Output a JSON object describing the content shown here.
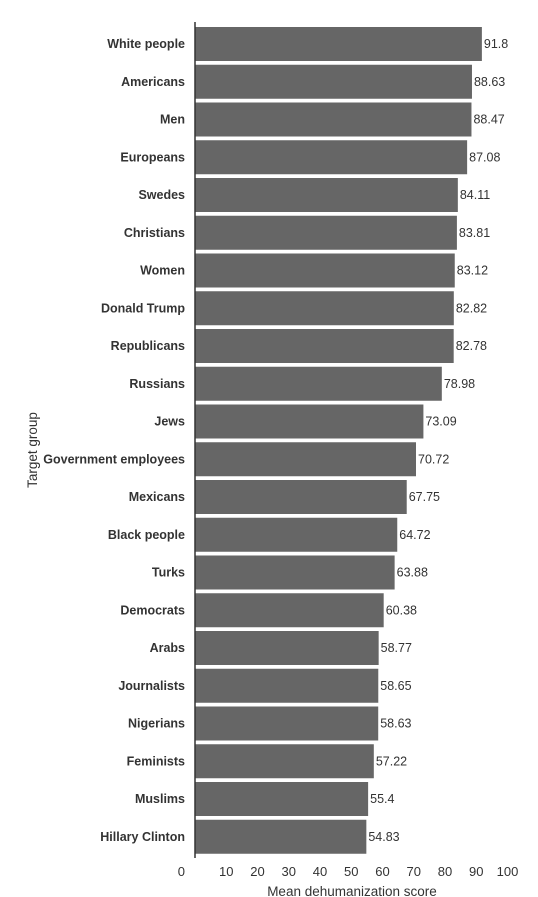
{
  "chart_data": {
    "type": "bar",
    "orientation": "horizontal",
    "xlabel": "Mean dehumanization score",
    "ylabel": "Target group",
    "xlim": [
      0,
      100
    ],
    "xticks": [
      "0",
      "10",
      "20",
      "30",
      "40",
      "50",
      "60",
      "70",
      "80",
      "90",
      "100"
    ],
    "bar_color": "#666666",
    "categories": [
      "White people",
      "Americans",
      "Men",
      "Europeans",
      "Swedes",
      "Christians",
      "Women",
      "Donald Trump",
      "Republicans",
      "Russians",
      "Jews",
      "Government employees",
      "Mexicans",
      "Black people",
      "Turks",
      "Democrats",
      "Arabs",
      "Journalists",
      "Nigerians",
      "Feminists",
      "Muslims",
      "Hillary Clinton"
    ],
    "values": [
      91.8,
      88.63,
      88.47,
      87.08,
      84.11,
      83.81,
      83.12,
      82.82,
      82.78,
      78.98,
      73.09,
      70.72,
      67.75,
      64.72,
      63.88,
      60.38,
      58.77,
      58.65,
      58.63,
      57.22,
      55.4,
      54.83
    ],
    "value_labels": [
      "91.8",
      "88.63",
      "88.47",
      "87.08",
      "84.11",
      "83.81",
      "83.12",
      "82.82",
      "82.78",
      "78.98",
      "73.09",
      "70.72",
      "67.75",
      "64.72",
      "63.88",
      "60.38",
      "58.77",
      "58.65",
      "58.63",
      "57.22",
      "55.4",
      "54.83"
    ]
  }
}
